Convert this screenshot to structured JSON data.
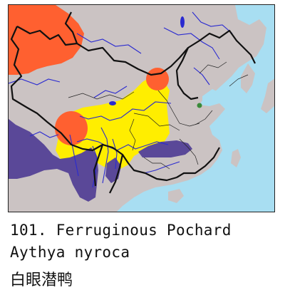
{
  "caption": {
    "number_name": "101. Ferruginous Pochard",
    "scientific_name": "Aythya nyroca",
    "chinese_name": "白眼潜鸭"
  },
  "legend_colors": {
    "sea": "#a8def2",
    "land": "#cbc3c3",
    "breeding": "#ff6030",
    "passage": "#ffee00",
    "wintering": "#5a4898",
    "vagrant_record": "#3a8a3a",
    "border": "#111111",
    "river": "#2a2ad0"
  }
}
